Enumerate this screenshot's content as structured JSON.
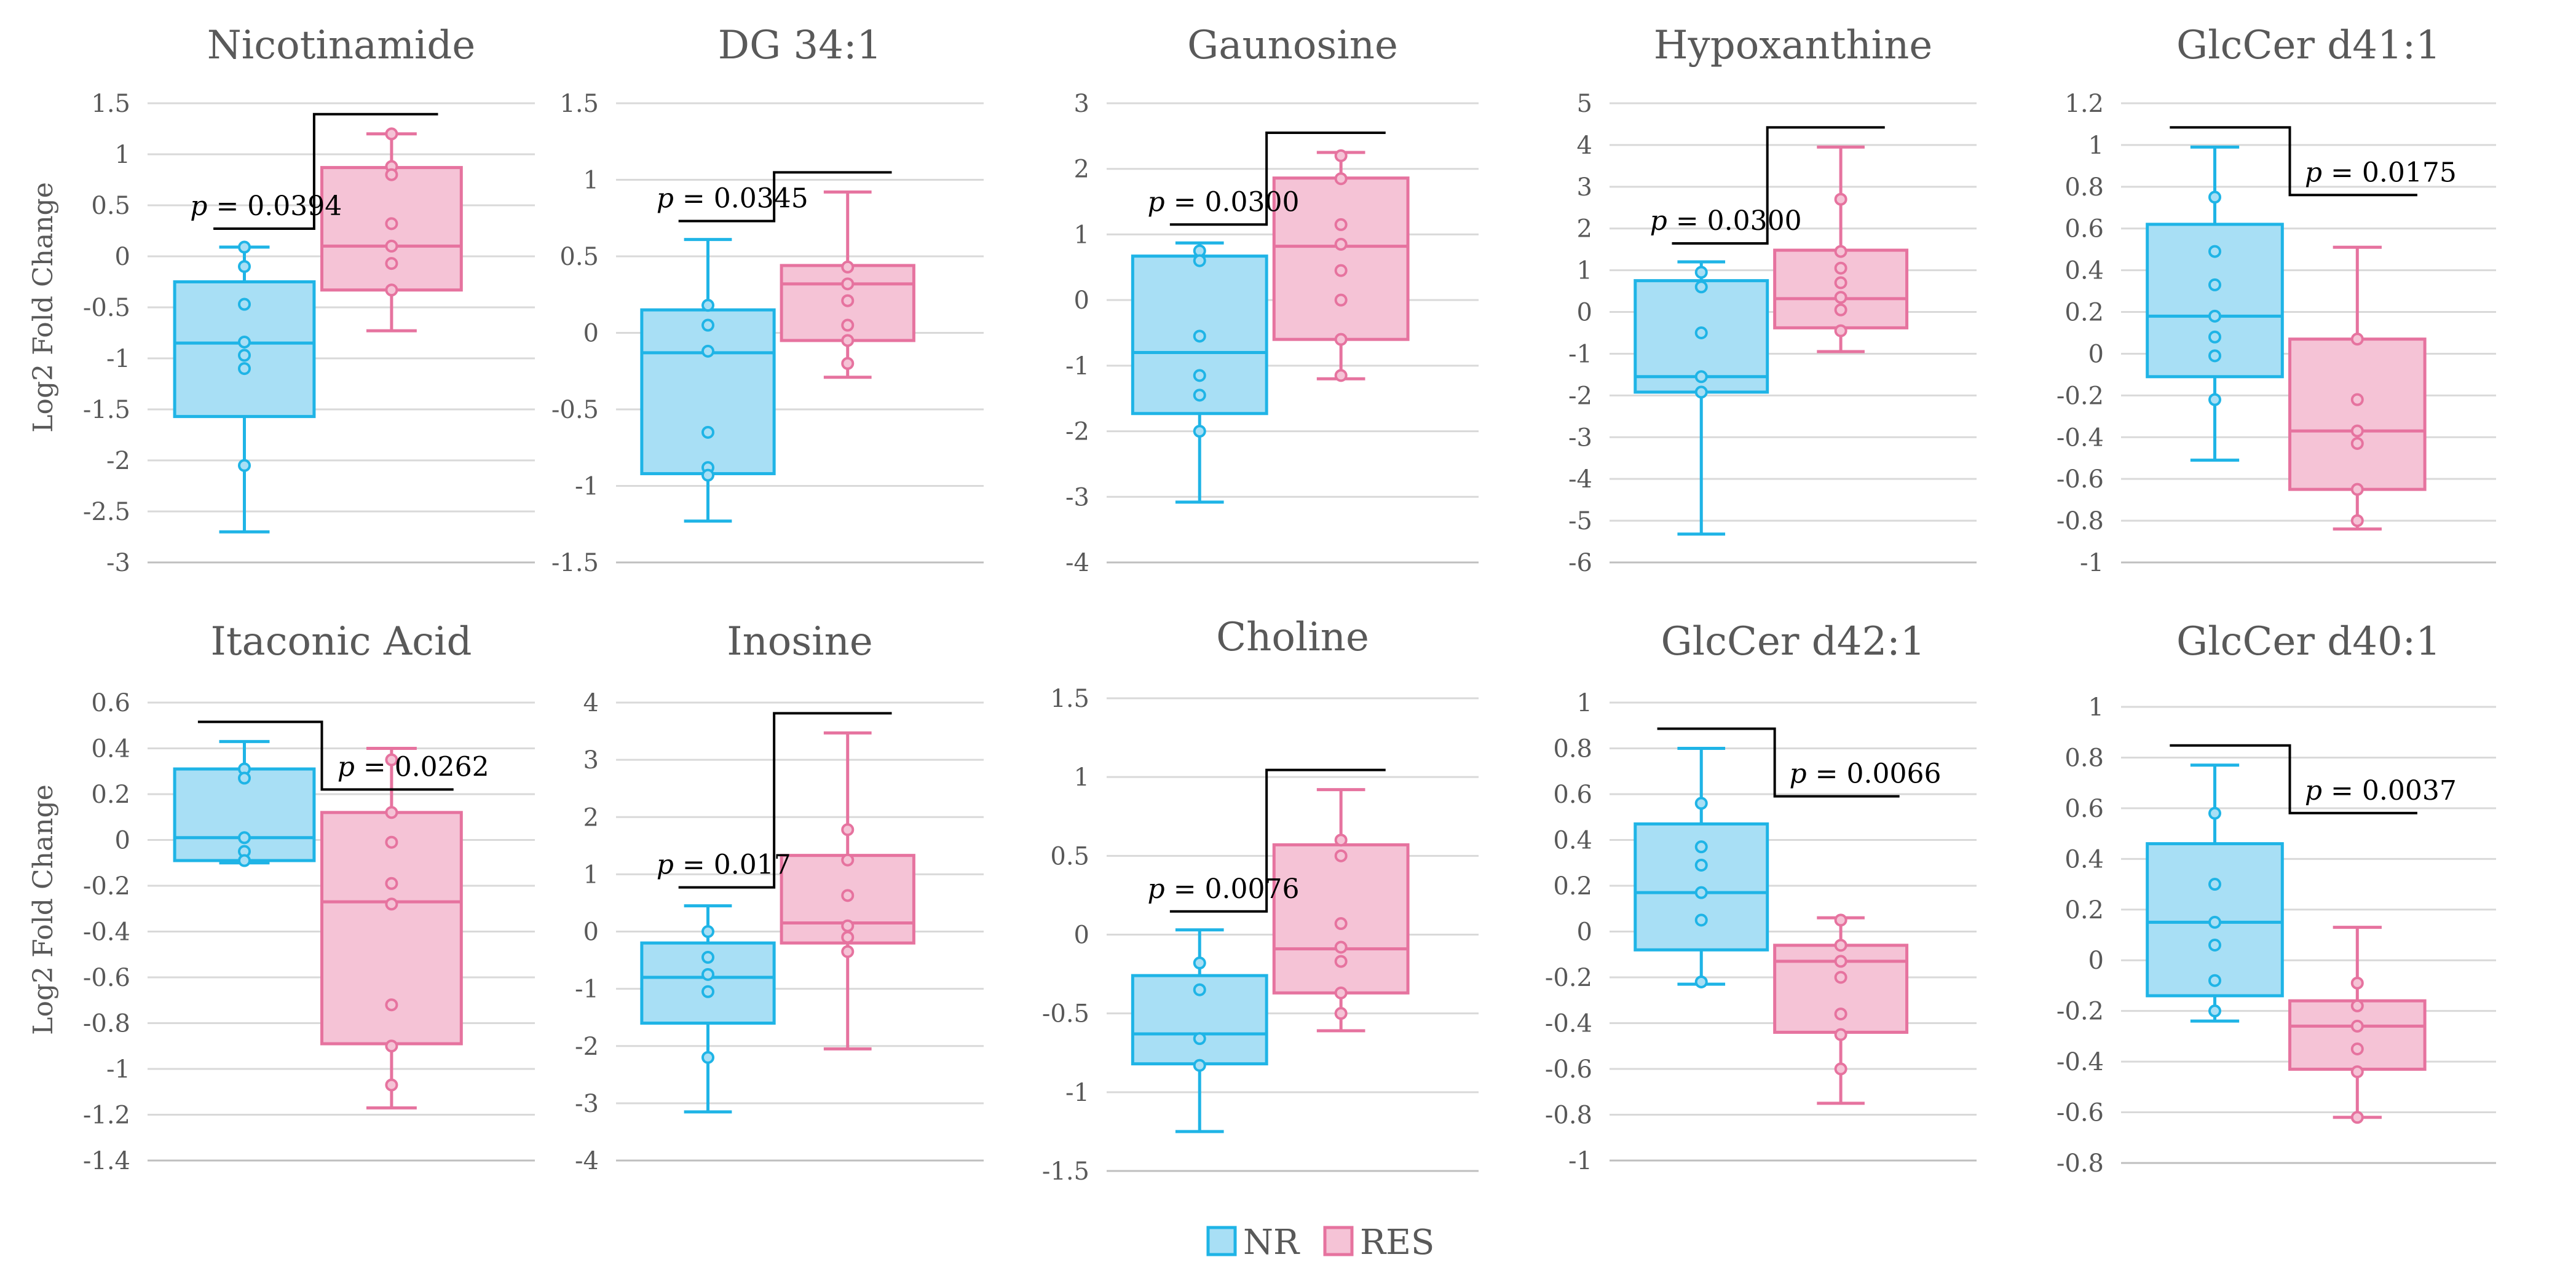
{
  "legend": {
    "nr_label": "NR",
    "res_label": "RES"
  },
  "colors": {
    "nr_stroke": "#1fb4e6",
    "nr_fill": "#a8dff5",
    "res_stroke": "#e6739f",
    "res_fill": "#f5c3d6"
  },
  "y_axis_label": "Log2 Fold Change",
  "chart_data": [
    {
      "type": "box",
      "title": "Nicotinamide",
      "ylim": [
        -3,
        1.5
      ],
      "yticks": [
        "-3",
        "-2.5",
        "-2",
        "-1.5",
        "-1",
        "-0.5",
        "0",
        "0.5",
        "1",
        "1.5"
      ],
      "p_label": "0.0394",
      "bracket_side": "left",
      "series": [
        {
          "name": "NR",
          "min": -2.7,
          "q1": -1.57,
          "median": -0.85,
          "q3": -0.25,
          "max": 0.09,
          "points": [
            0.09,
            -0.1,
            -0.47,
            -0.84,
            -0.97,
            -1.1,
            -2.05
          ]
        },
        {
          "name": "RES",
          "min": -0.73,
          "q1": -0.33,
          "median": 0.1,
          "q3": 0.87,
          "max": 1.2,
          "points": [
            1.2,
            0.88,
            0.8,
            0.32,
            0.1,
            -0.07,
            -0.33
          ]
        }
      ]
    },
    {
      "type": "box",
      "title": "DG 34:1",
      "ylim": [
        -1.5,
        1.5
      ],
      "yticks": [
        "-1.5",
        "-1",
        "-0.5",
        "0",
        "0.5",
        "1",
        "1.5"
      ],
      "p_label": "0.0345",
      "bracket_side": "left",
      "series": [
        {
          "name": "NR",
          "min": -1.23,
          "q1": -0.92,
          "median": -0.13,
          "q3": 0.15,
          "max": 0.61,
          "points": [
            0.18,
            0.05,
            -0.12,
            -0.65,
            -0.88,
            -0.93
          ]
        },
        {
          "name": "RES",
          "min": -0.29,
          "q1": -0.05,
          "median": 0.32,
          "q3": 0.44,
          "max": 0.92,
          "points": [
            0.43,
            0.32,
            0.21,
            0.05,
            -0.05,
            -0.2
          ]
        }
      ]
    },
    {
      "type": "box",
      "title": "Gaunosine",
      "ylim": [
        -4,
        3
      ],
      "yticks": [
        "-4",
        "-3",
        "-2",
        "-1",
        "0",
        "1",
        "2",
        "3"
      ],
      "p_label": "0.0300",
      "bracket_side": "left",
      "series": [
        {
          "name": "NR",
          "min": -3.08,
          "q1": -1.73,
          "median": -0.8,
          "q3": 0.67,
          "max": 0.87,
          "points": [
            0.75,
            0.6,
            -0.55,
            -1.15,
            -1.45,
            -2.0
          ]
        },
        {
          "name": "RES",
          "min": -1.2,
          "q1": -0.6,
          "median": 0.82,
          "q3": 1.86,
          "max": 2.25,
          "points": [
            2.2,
            1.85,
            1.15,
            0.85,
            0.45,
            0.0,
            -0.6,
            -1.15
          ]
        }
      ]
    },
    {
      "type": "box",
      "title": "Hypoxanthine",
      "ylim": [
        -6,
        5
      ],
      "yticks": [
        "-6",
        "-5",
        "-4",
        "-3",
        "-2",
        "-1",
        "0",
        "1",
        "2",
        "3",
        "4",
        "5"
      ],
      "p_label": "0.0300",
      "bracket_side": "left",
      "series": [
        {
          "name": "NR",
          "min": -5.32,
          "q1": -1.92,
          "median": -1.55,
          "q3": 0.75,
          "max": 1.2,
          "points": [
            0.95,
            0.6,
            -0.5,
            -1.55,
            -1.92
          ]
        },
        {
          "name": "RES",
          "min": -0.95,
          "q1": -0.38,
          "median": 0.32,
          "q3": 1.48,
          "max": 3.95,
          "points": [
            2.7,
            1.45,
            1.05,
            0.7,
            0.35,
            0.05,
            -0.45
          ]
        }
      ]
    },
    {
      "type": "box",
      "title": "GlcCer d41:1",
      "ylim": [
        -1,
        1.2
      ],
      "yticks": [
        "-1",
        "-0.8",
        "-0.6",
        "-0.4",
        "-0.2",
        "0",
        "0.2",
        "0.4",
        "0.6",
        "0.8",
        "1",
        "1.2"
      ],
      "p_label": "0.0175",
      "bracket_side": "right",
      "series": [
        {
          "name": "NR",
          "min": -0.51,
          "q1": -0.11,
          "median": 0.18,
          "q3": 0.62,
          "max": 0.99,
          "points": [
            0.75,
            0.49,
            0.33,
            0.18,
            0.08,
            -0.01,
            -0.22
          ]
        },
        {
          "name": "RES",
          "min": -0.84,
          "q1": -0.65,
          "median": -0.37,
          "q3": 0.07,
          "max": 0.51,
          "points": [
            0.07,
            -0.22,
            -0.37,
            -0.43,
            -0.65,
            -0.8
          ]
        }
      ]
    },
    {
      "type": "box",
      "title": "Itaconic Acid",
      "ylim": [
        -1.4,
        0.6
      ],
      "yticks": [
        "-1.4",
        "-1.2",
        "-1",
        "-0.8",
        "-0.6",
        "-0.4",
        "-0.2",
        "0",
        "0.2",
        "0.4",
        "0.6"
      ],
      "p_label": "0.0262",
      "bracket_side": "right",
      "series": [
        {
          "name": "NR",
          "min": -0.1,
          "q1": -0.09,
          "median": 0.01,
          "q3": 0.31,
          "max": 0.43,
          "points": [
            0.31,
            0.27,
            0.01,
            -0.05,
            -0.09
          ]
        },
        {
          "name": "RES",
          "min": -1.17,
          "q1": -0.89,
          "median": -0.27,
          "q3": 0.12,
          "max": 0.4,
          "points": [
            0.35,
            0.12,
            -0.01,
            -0.19,
            -0.28,
            -0.72,
            -0.9,
            -1.07
          ]
        }
      ]
    },
    {
      "type": "box",
      "title": "Inosine",
      "ylim": [
        -4,
        4
      ],
      "yticks": [
        "-4",
        "-3",
        "-2",
        "-1",
        "0",
        "1",
        "2",
        "3",
        "4"
      ],
      "p_label": "0.017",
      "bracket_side": "left",
      "series": [
        {
          "name": "NR",
          "min": -3.15,
          "q1": -1.6,
          "median": -0.8,
          "q3": -0.2,
          "max": 0.45,
          "points": [
            0.0,
            -0.45,
            -0.75,
            -1.05,
            -2.2
          ]
        },
        {
          "name": "RES",
          "min": -2.05,
          "q1": -0.2,
          "median": 0.15,
          "q3": 1.33,
          "max": 3.47,
          "points": [
            1.78,
            1.25,
            0.63,
            0.1,
            -0.1,
            -0.35
          ]
        }
      ]
    },
    {
      "type": "box",
      "title": "Choline",
      "ylim": [
        -1.5,
        1.5
      ],
      "yticks": [
        "-1.5",
        "-1",
        "-0.5",
        "0",
        "0.5",
        "1",
        "1.5"
      ],
      "p_label": "0.0076",
      "bracket_side": "left",
      "series": [
        {
          "name": "NR",
          "min": -1.25,
          "q1": -0.82,
          "median": -0.63,
          "q3": -0.26,
          "max": 0.03,
          "points": [
            -0.18,
            -0.35,
            -0.66,
            -0.83
          ]
        },
        {
          "name": "RES",
          "min": -0.61,
          "q1": -0.37,
          "median": -0.09,
          "q3": 0.57,
          "max": 0.92,
          "points": [
            0.6,
            0.5,
            0.07,
            -0.08,
            -0.17,
            -0.37,
            -0.5
          ]
        }
      ]
    },
    {
      "type": "box",
      "title": "GlcCer d42:1",
      "ylim": [
        -1,
        1
      ],
      "yticks": [
        "-1",
        "-0.8",
        "-0.6",
        "-0.4",
        "-0.2",
        "0",
        "0.2",
        "0.4",
        "0.6",
        "0.8",
        "1"
      ],
      "p_label": "0.0066",
      "bracket_side": "right",
      "series": [
        {
          "name": "NR",
          "min": -0.23,
          "q1": -0.08,
          "median": 0.17,
          "q3": 0.47,
          "max": 0.8,
          "points": [
            0.56,
            0.37,
            0.29,
            0.17,
            0.05,
            -0.22
          ]
        },
        {
          "name": "RES",
          "min": -0.75,
          "q1": -0.44,
          "median": -0.13,
          "q3": -0.06,
          "max": 0.06,
          "points": [
            0.05,
            -0.06,
            -0.13,
            -0.2,
            -0.36,
            -0.45,
            -0.6
          ]
        }
      ]
    },
    {
      "type": "box",
      "title": "GlcCer d40:1",
      "ylim": [
        -0.8,
        1
      ],
      "yticks": [
        "-0.8",
        "-0.6",
        "-0.4",
        "-0.2",
        "0",
        "0.2",
        "0.4",
        "0.6",
        "0.8",
        "1"
      ],
      "p_label": "0.0037",
      "bracket_side": "right",
      "series": [
        {
          "name": "NR",
          "min": -0.24,
          "q1": -0.14,
          "median": 0.15,
          "q3": 0.46,
          "max": 0.77,
          "points": [
            0.58,
            0.3,
            0.15,
            0.06,
            -0.08,
            -0.2
          ]
        },
        {
          "name": "RES",
          "min": -0.62,
          "q1": -0.43,
          "median": -0.26,
          "q3": -0.16,
          "max": 0.13,
          "points": [
            -0.09,
            -0.18,
            -0.26,
            -0.35,
            -0.44,
            -0.62
          ]
        }
      ]
    }
  ]
}
